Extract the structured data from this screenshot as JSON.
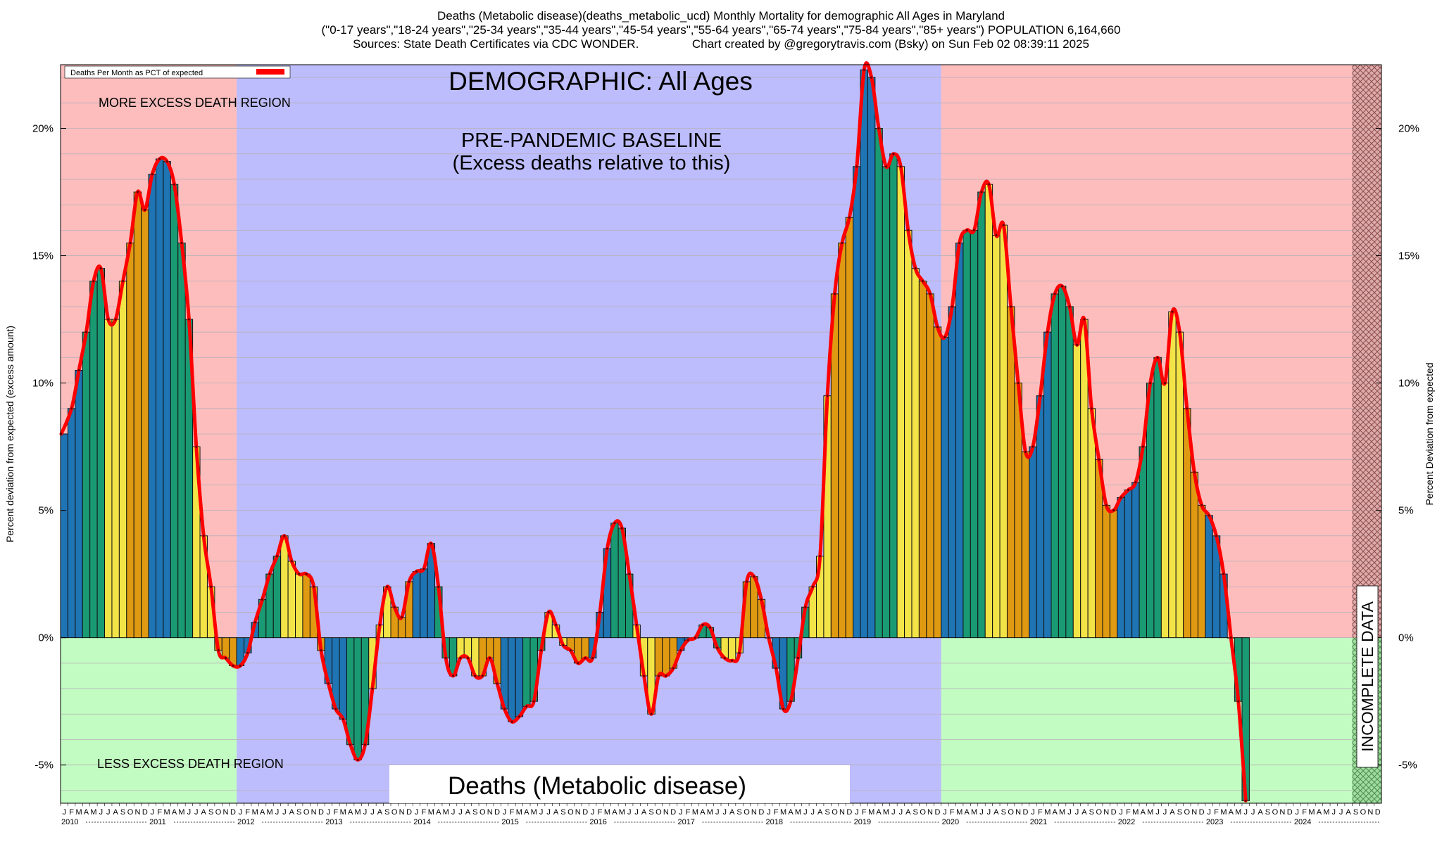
{
  "header": {
    "line1": "Deaths (Metabolic disease)(deaths_metabolic_ucd) Monthly Mortality for demographic All Ages in Maryland",
    "line2": "(\"0-17 years\",\"18-24 years\",\"25-34 years\",\"35-44 years\",\"45-54 years\",\"55-64 years\",\"65-74 years\",\"75-84 years\",\"85+ years\") POPULATION 6,164,660",
    "line3": "Sources: State Death Certificates via CDC WONDER.                Chart created by @gregorytravis.com (Bsky) on Sun Feb 02 08:39:11 2025"
  },
  "colors": {
    "excess_region": "#fdbdbd",
    "less_region": "#c2fcc2",
    "baseline_region": "#bdbdfd",
    "line": "#ff0000",
    "bar_blue": "#1f74b4",
    "bar_green": "#1a9a72",
    "bar_yellow": "#f2e347",
    "bar_orange": "#e09a12"
  },
  "chart_data": {
    "type": "bar",
    "title": "DEMOGRAPHIC: All Ages",
    "ylabel_left": "Percent deviation from expected (excess amount)",
    "ylabel_right": "Percent Deviation from expected",
    "legend": "Deaths Per Month as PCT of expected",
    "legend_position": "top-left",
    "annotations": {
      "more_excess": "MORE EXCESS DEATH REGION",
      "less_excess": "LESS EXCESS DEATH REGION",
      "baseline_line1": "PRE-PANDEMIC BASELINE",
      "baseline_line2": "(Excess deaths relative to this)",
      "bottom_label": "Deaths (Metabolic disease)",
      "incomplete": "INCOMPLETE DATA"
    },
    "ylim": [
      -6.5,
      22.5
    ],
    "yticks": [
      -5,
      0,
      5,
      10,
      15,
      20
    ],
    "ytick_labels": [
      "-5%",
      "0%",
      "5%",
      "10%",
      "15%",
      "20%"
    ],
    "grid": true,
    "baseline_years": [
      2012,
      2019
    ],
    "incomplete_from": "2024-09",
    "month_letters": [
      "J",
      "F",
      "M",
      "A",
      "M",
      "J",
      "J",
      "A",
      "S",
      "O",
      "N",
      "D"
    ],
    "years": [
      "2010",
      "2011",
      "2012",
      "2013",
      "2014",
      "2015",
      "2016",
      "2017",
      "2018",
      "2019",
      "2020",
      "2021",
      "2022",
      "2023",
      "2024"
    ],
    "start": "2010-01",
    "values": [
      8.0,
      9.0,
      10.5,
      12.0,
      14.0,
      14.5,
      12.5,
      12.5,
      14.0,
      15.5,
      17.5,
      16.8,
      18.2,
      18.8,
      18.7,
      17.8,
      15.5,
      12.5,
      7.5,
      4.0,
      2.0,
      -0.5,
      -0.8,
      -1.1,
      -1.1,
      -0.6,
      0.6,
      1.5,
      2.5,
      3.2,
      4.0,
      3.0,
      2.5,
      2.5,
      2.0,
      -0.5,
      -1.8,
      -2.8,
      -3.2,
      -4.2,
      -4.8,
      -4.2,
      -2.0,
      0.5,
      2.0,
      1.2,
      0.8,
      2.2,
      2.6,
      2.7,
      3.7,
      2.0,
      -0.8,
      -1.5,
      -0.8,
      -0.8,
      -1.5,
      -1.5,
      -0.8,
      -1.8,
      -2.8,
      -3.3,
      -3.1,
      -2.7,
      -2.5,
      -0.5,
      1.0,
      0.5,
      -0.3,
      -0.5,
      -1.0,
      -0.8,
      -0.8,
      1.0,
      3.5,
      4.5,
      4.3,
      2.5,
      0.5,
      -1.5,
      -3.0,
      -1.5,
      -1.5,
      -1.2,
      -0.5,
      -0.1,
      0.0,
      0.5,
      0.4,
      -0.4,
      -0.8,
      -0.9,
      -0.6,
      2.2,
      2.4,
      1.5,
      0.0,
      -1.2,
      -2.8,
      -2.5,
      -0.8,
      1.2,
      2.0,
      3.2,
      9.5,
      13.5,
      15.5,
      16.5,
      18.5,
      22.3,
      22.0,
      20.0,
      18.5,
      19.0,
      18.5,
      16.0,
      14.5,
      14.0,
      13.5,
      12.2,
      11.8,
      13.0,
      15.5,
      16.0,
      16.0,
      17.5,
      17.8,
      15.8,
      16.2,
      13.0,
      10.0,
      7.3,
      7.5,
      9.5,
      12.0,
      13.5,
      13.8,
      13.0,
      11.5,
      12.5,
      9.0,
      7.0,
      5.2,
      5.0,
      5.5,
      5.8,
      6.1,
      7.5,
      10.0,
      11.0,
      10.0,
      12.8,
      12.0,
      9.0,
      6.5,
      5.2,
      4.8,
      4.0,
      2.5,
      0.0,
      -2.5,
      -6.4
    ]
  }
}
